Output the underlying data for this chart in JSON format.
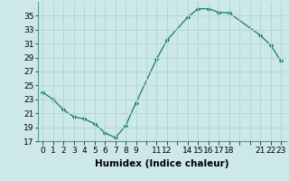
{
  "x": [
    0,
    1,
    2,
    3,
    4,
    5,
    6,
    7,
    8,
    9,
    11,
    12,
    14,
    15,
    16,
    17,
    18,
    21,
    22,
    23
  ],
  "y": [
    24.0,
    23.0,
    21.5,
    20.5,
    20.2,
    19.5,
    18.2,
    17.5,
    19.2,
    22.5,
    28.8,
    31.5,
    34.8,
    36.0,
    36.0,
    35.5,
    35.4,
    32.2,
    30.8,
    28.5
  ],
  "xlabel": "Humidex (Indice chaleur)",
  "ylim": [
    17,
    37
  ],
  "xlim": [
    -0.5,
    23.5
  ],
  "yticks": [
    17,
    19,
    21,
    23,
    25,
    27,
    29,
    31,
    33,
    35
  ],
  "xtick_labels": [
    "0",
    "1",
    "2",
    "3",
    "4",
    "5",
    "6",
    "7",
    "8",
    "9",
    "",
    "11",
    "12",
    "",
    "14",
    "15",
    "16",
    "17",
    "18",
    "",
    "",
    "21",
    "22",
    "23"
  ],
  "xtick_positions": [
    0,
    1,
    2,
    3,
    4,
    5,
    6,
    7,
    8,
    9,
    10,
    11,
    12,
    13,
    14,
    15,
    16,
    17,
    18,
    19,
    20,
    21,
    22,
    23
  ],
  "line_color": "#1a7a6a",
  "marker_color": "#1a7a6a",
  "bg_color": "#cce8e8",
  "grid_color": "#b0d8d8",
  "font_color": "#000000",
  "font_size": 6.5,
  "xlabel_fontsize": 7.5
}
